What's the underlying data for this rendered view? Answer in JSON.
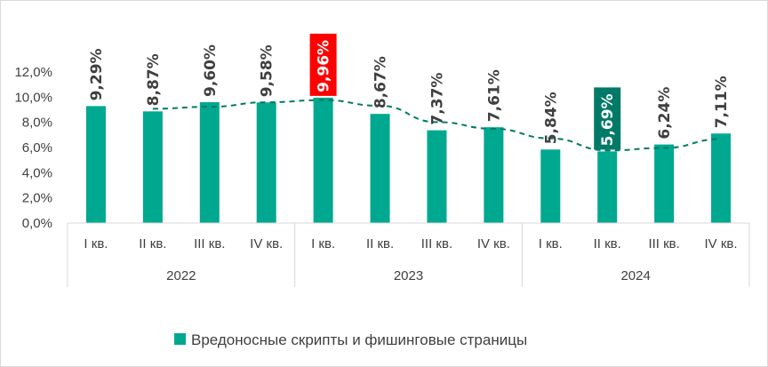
{
  "chart_data": {
    "type": "bar",
    "categories": [
      "I кв.",
      "II кв.",
      "III кв.",
      "IV кв.",
      "I кв.",
      "II кв.",
      "III кв.",
      "IV кв.",
      "I кв.",
      "II кв.",
      "III кв.",
      "IV кв."
    ],
    "groups": [
      {
        "label": "2022",
        "count": 4
      },
      {
        "label": "2023",
        "count": 4
      },
      {
        "label": "2024",
        "count": 4
      }
    ],
    "series": [
      {
        "name": "Вредоносные скрипты и фишинговые страницы",
        "color": "#00a88f",
        "values": [
          9.29,
          8.87,
          9.6,
          9.58,
          9.96,
          8.67,
          7.37,
          7.61,
          5.84,
          5.69,
          6.24,
          7.11
        ],
        "labels": [
          "9,29%",
          "8,87%",
          "9,60%",
          "9,58%",
          "9,96%",
          "8,67%",
          "7,37%",
          "7,61%",
          "5,84%",
          "5,69%",
          "6,24%",
          "7,11%"
        ]
      }
    ],
    "highlights": [
      {
        "index": 4,
        "color": "#ff0000"
      },
      {
        "index": 9,
        "color": "#007a66"
      }
    ],
    "trendline": {
      "type": "moving-average",
      "style": "dashed",
      "color": "#007a66"
    },
    "ylim": [
      0,
      12
    ],
    "yticks": [
      "0,0%",
      "2,0%",
      "4,0%",
      "6,0%",
      "8,0%",
      "10,0%",
      "12,0%"
    ],
    "legend_position": "bottom",
    "grid": false
  }
}
